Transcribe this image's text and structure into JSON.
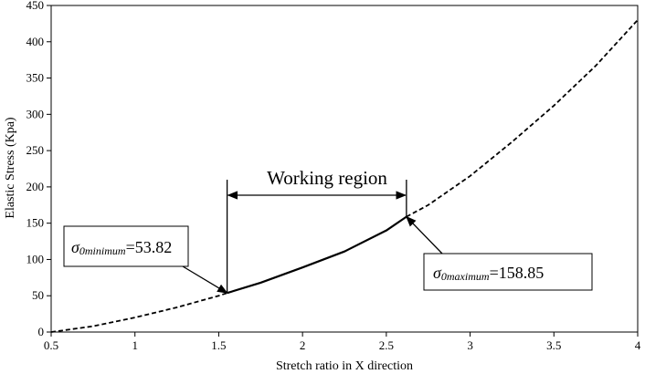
{
  "chart_data": {
    "type": "line",
    "title": "",
    "xlabel": "Stretch ratio in X direction",
    "ylabel": "Elastic Stress (Kpa)",
    "xlim": [
      0.5,
      4
    ],
    "ylim": [
      0,
      450
    ],
    "x_ticks": [
      "0.5",
      "1",
      "1.5",
      "2",
      "2.5",
      "3",
      "3.5",
      "4"
    ],
    "y_ticks": [
      "0",
      "50",
      "100",
      "150",
      "200",
      "250",
      "300",
      "350",
      "400",
      "450"
    ],
    "grid": false,
    "series": [
      {
        "style": "dashed",
        "x": [
          0.5,
          0.75,
          1.0,
          1.25,
          1.5,
          1.55
        ],
        "y": [
          0,
          8,
          20,
          34,
          50,
          53.82
        ]
      },
      {
        "style": "solid",
        "x": [
          1.55,
          1.75,
          2.0,
          2.25,
          2.5,
          2.62
        ],
        "y": [
          53.82,
          68,
          89,
          111,
          140,
          158.85
        ]
      },
      {
        "style": "dashed",
        "x": [
          2.62,
          2.75,
          3.0,
          3.25,
          3.5,
          3.75,
          4.0
        ],
        "y": [
          158.85,
          175,
          215,
          262,
          312,
          367,
          430
        ]
      }
    ],
    "annotations": {
      "region_label": "Working region",
      "region_x": [
        1.55,
        2.62
      ],
      "min_box": {
        "symbol": "σ",
        "subscript": "0minimum",
        "value_text": "=53.82",
        "point": [
          1.55,
          53.82
        ]
      },
      "max_box": {
        "symbol": "σ",
        "subscript": "0maximum",
        "value_text": "=158.85",
        "point": [
          2.62,
          158.85
        ]
      }
    }
  }
}
